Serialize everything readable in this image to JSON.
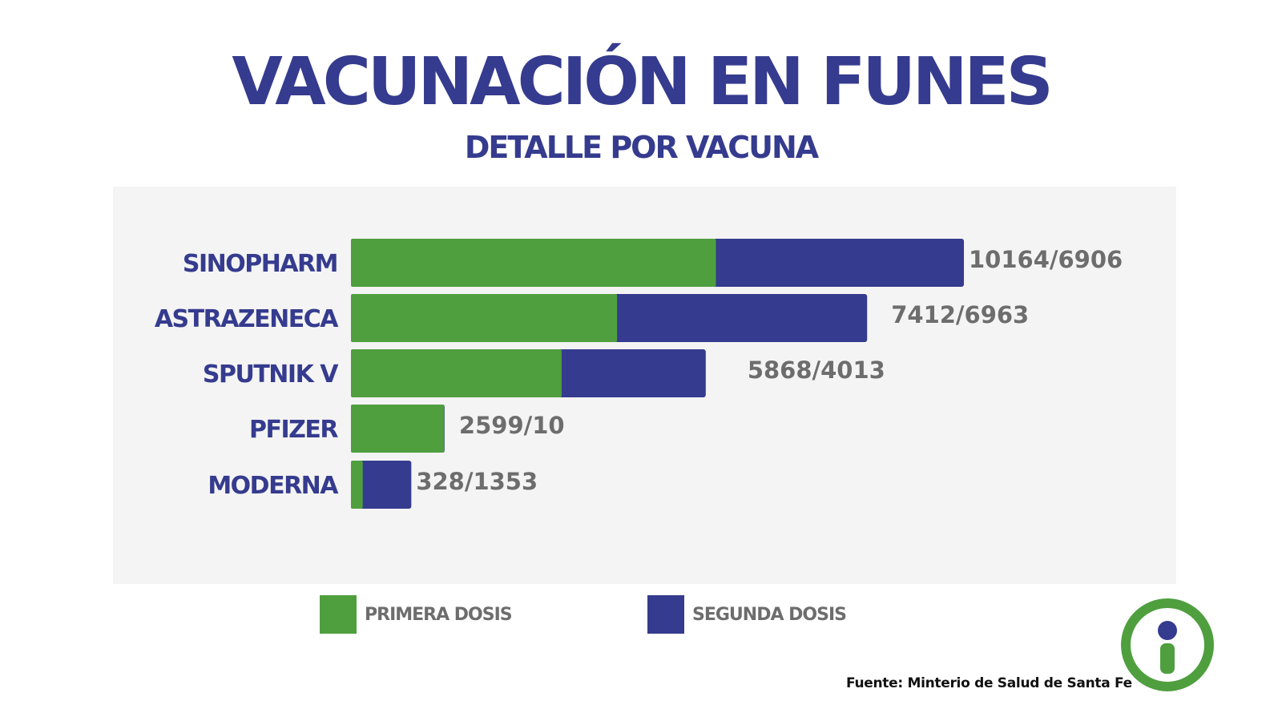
{
  "title": "VACUNACIÓN EN FUNES",
  "subtitle": "DETALLE POR VACUNA",
  "colors": {
    "title": "#353b8e",
    "primera": "#4f9f3f",
    "segunda": "#353b8e",
    "value_text": "#6d6d6d",
    "panel": "#f4f4f4",
    "logo_green": "#4f9f3f",
    "logo_blue": "#353b8e"
  },
  "chart_data": {
    "type": "bar",
    "orientation": "horizontal",
    "stacked": true,
    "categories": [
      "SINOPHARM",
      "ASTRAZENECA",
      "SPUTNIK V",
      "PFIZER",
      "MODERNA"
    ],
    "series": [
      {
        "name": "PRIMERA DOSIS",
        "values": [
          10164,
          7412,
          5868,
          2599,
          328
        ]
      },
      {
        "name": "SEGUNDA DOSIS",
        "values": [
          6906,
          6963,
          4013,
          10,
          1353
        ]
      }
    ],
    "value_labels": [
      "10164/6906",
      "7412/6963",
      "5868/4013",
      "2599/10",
      "328/1353"
    ],
    "grid": false,
    "legend_position": "bottom"
  },
  "legend": {
    "primera": "PRIMERA DOSIS",
    "segunda": "SEGUNDA DOSIS"
  },
  "source": "Fuente: Minterio de Salud de Santa Fe",
  "logo": {
    "icon": "info-icon"
  }
}
